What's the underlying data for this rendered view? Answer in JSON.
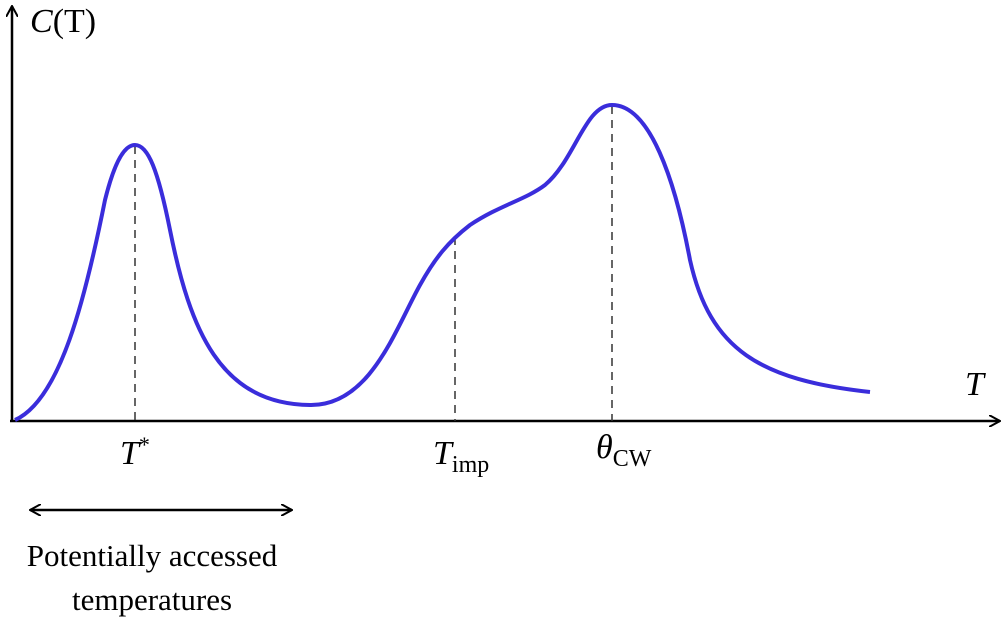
{
  "axes": {
    "y_label": {
      "main": "C",
      "arg": "(T)"
    },
    "x_label": "T"
  },
  "markers": [
    {
      "main": "T",
      "sup": "*"
    },
    {
      "main": "T",
      "sub": "imp"
    },
    {
      "main": "θ",
      "sub": "CW"
    }
  ],
  "note": {
    "lines": [
      "Potentially accessed",
      "temperatures"
    ]
  }
}
